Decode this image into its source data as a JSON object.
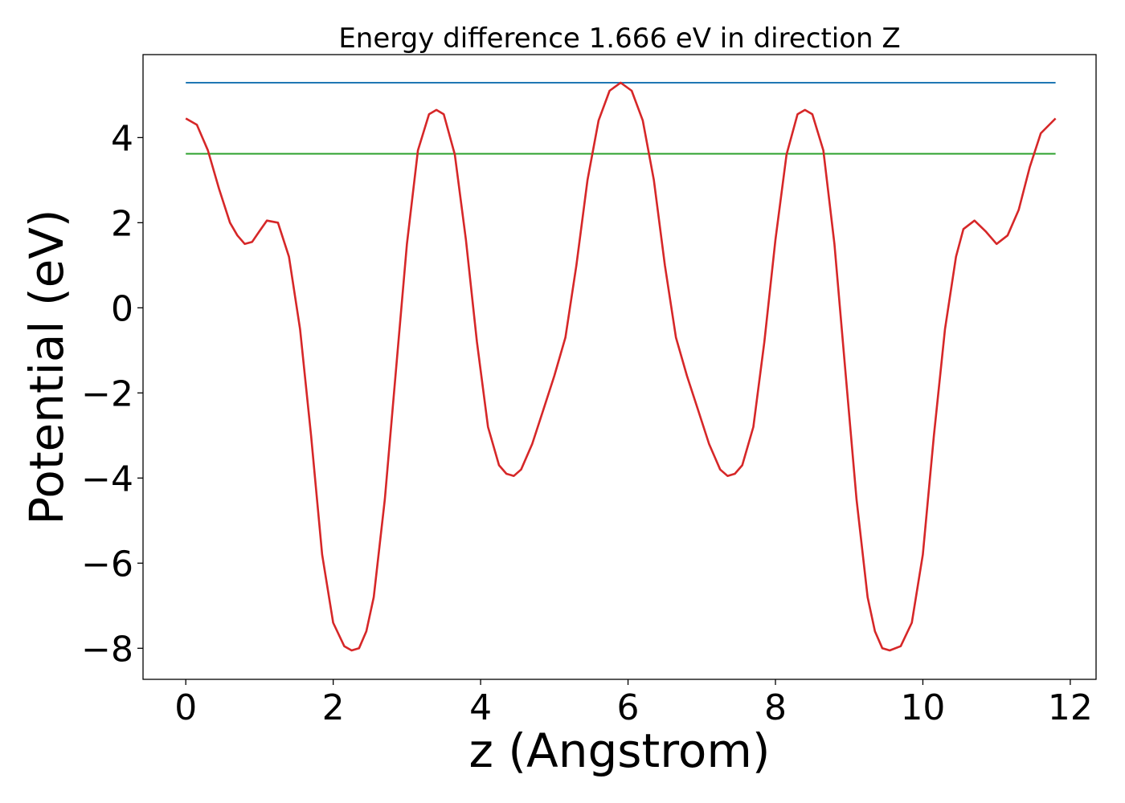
{
  "chart_data": {
    "type": "line",
    "title": "Energy difference 1.666 eV in direction Z",
    "xlabel": "z (Angstrom)",
    "ylabel": "Potential (eV)",
    "xlim": [
      -0.58,
      12.35
    ],
    "ylim": [
      -8.73,
      5.95
    ],
    "xticks": [
      0,
      2,
      4,
      6,
      8,
      10,
      12
    ],
    "xtick_labels": [
      "0",
      "2",
      "4",
      "6",
      "8",
      "10",
      "12"
    ],
    "yticks": [
      -8,
      -6,
      -4,
      -2,
      0,
      2,
      4
    ],
    "ytick_labels": [
      "−8",
      "−6",
      "−4",
      "−2",
      "0",
      "2",
      "4"
    ],
    "grid": false,
    "series": [
      {
        "color": "#1f77b4",
        "x": [
          0,
          11.8
        ],
        "y": [
          5.29,
          5.29
        ]
      },
      {
        "color": "#2ca02c",
        "x": [
          0,
          11.8
        ],
        "y": [
          3.62,
          3.62
        ]
      },
      {
        "color": "#d62728",
        "x": [
          0,
          0.15,
          0.3,
          0.45,
          0.6,
          0.7,
          0.8,
          0.9,
          1.0,
          1.1,
          1.25,
          1.4,
          1.55,
          1.7,
          1.85,
          2.0,
          2.15,
          2.25,
          2.35,
          2.45,
          2.55,
          2.7,
          2.85,
          3.0,
          3.15,
          3.3,
          3.4,
          3.5,
          3.65,
          3.8,
          3.95,
          4.1,
          4.25,
          4.35,
          4.45,
          4.55,
          4.7,
          4.85,
          5.0,
          5.15,
          5.3,
          5.45,
          5.6,
          5.75,
          5.9,
          6.05,
          6.2,
          6.35,
          6.5,
          6.65,
          6.8,
          6.95,
          7.1,
          7.25,
          7.35,
          7.45,
          7.55,
          7.7,
          7.85,
          8.0,
          8.15,
          8.3,
          8.4,
          8.5,
          8.65,
          8.8,
          8.95,
          9.1,
          9.25,
          9.35,
          9.45,
          9.55,
          9.7,
          9.85,
          10.0,
          10.15,
          10.3,
          10.45,
          10.55,
          10.7,
          10.85,
          11.0,
          11.15,
          11.3,
          11.45,
          11.6,
          11.8
        ],
        "y": [
          4.45,
          4.3,
          3.7,
          2.8,
          2.0,
          1.7,
          1.5,
          1.55,
          1.8,
          2.05,
          2.0,
          1.2,
          -0.5,
          -3.0,
          -5.8,
          -7.4,
          -7.95,
          -8.05,
          -8.0,
          -7.6,
          -6.8,
          -4.5,
          -1.5,
          1.5,
          3.7,
          4.55,
          4.65,
          4.55,
          3.6,
          1.6,
          -0.8,
          -2.8,
          -3.7,
          -3.9,
          -3.95,
          -3.8,
          -3.2,
          -2.4,
          -1.6,
          -0.7,
          1.0,
          3.0,
          4.4,
          5.1,
          5.29,
          5.1,
          4.4,
          3.0,
          1.0,
          -0.7,
          -1.6,
          -2.4,
          -3.2,
          -3.8,
          -3.95,
          -3.9,
          -3.7,
          -2.8,
          -0.8,
          1.6,
          3.6,
          4.55,
          4.65,
          4.55,
          3.7,
          1.5,
          -1.5,
          -4.5,
          -6.8,
          -7.6,
          -8.0,
          -8.05,
          -7.95,
          -7.4,
          -5.8,
          -3.0,
          -0.5,
          1.2,
          1.85,
          2.05,
          1.8,
          1.5,
          1.7,
          2.3,
          3.3,
          4.1,
          4.45
        ]
      }
    ]
  }
}
